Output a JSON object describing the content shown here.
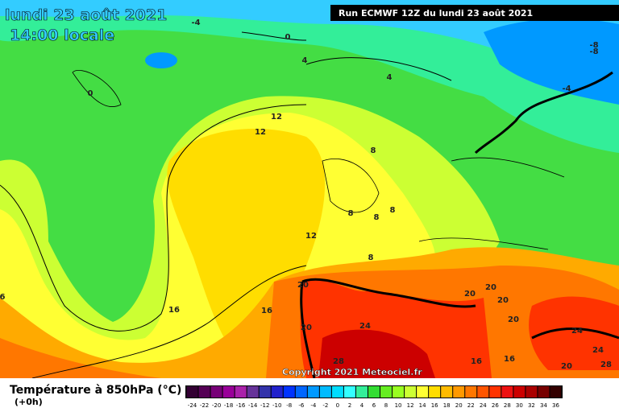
{
  "header": {
    "date": "lundi 23 août 2021",
    "time": "14:00 locale",
    "run": "Run ECMWF 12Z du lundi 23 août 2021"
  },
  "copyright": "Copyright 2021 Meteociel.fr",
  "legend": {
    "title": "Température à 850hPa (°C)",
    "step": "(+0h)",
    "labels": [
      "-24",
      "-22",
      "-20",
      "-18",
      "-16",
      "-14",
      "-12",
      "-10",
      "-8",
      "-6",
      "-4",
      "-2",
      "0",
      "2",
      "4",
      "6",
      "8",
      "10",
      "12",
      "14",
      "16",
      "18",
      "20",
      "22",
      "24",
      "26",
      "28",
      "30",
      "32",
      "34",
      "36"
    ],
    "colors": [
      "#330033",
      "#550055",
      "#770077",
      "#990099",
      "#aa22aa",
      "#663399",
      "#3333aa",
      "#2222cc",
      "#0033ff",
      "#0066ff",
      "#0099ff",
      "#00bbff",
      "#00ddff",
      "#33ffff",
      "#33ee99",
      "#33dd33",
      "#66ee22",
      "#99ff22",
      "#ccff33",
      "#ffff33",
      "#ffdd00",
      "#ffbb00",
      "#ff9900",
      "#ff7700",
      "#ff5500",
      "#ff3300",
      "#ee1111",
      "#cc0000",
      "#aa0000",
      "#770000",
      "#330000"
    ]
  },
  "map": {
    "contour_labels": [
      "-4",
      "0",
      "4",
      "4",
      "0",
      "-8",
      "-8",
      "-4",
      "12",
      "12",
      "8",
      "8",
      "8",
      "8",
      "12",
      "8",
      "20",
      "20",
      "24",
      "28",
      "20",
      "20",
      "20",
      "20",
      "24",
      "24",
      "28",
      "20",
      "16",
      "16",
      "16",
      "16",
      "6"
    ]
  }
}
